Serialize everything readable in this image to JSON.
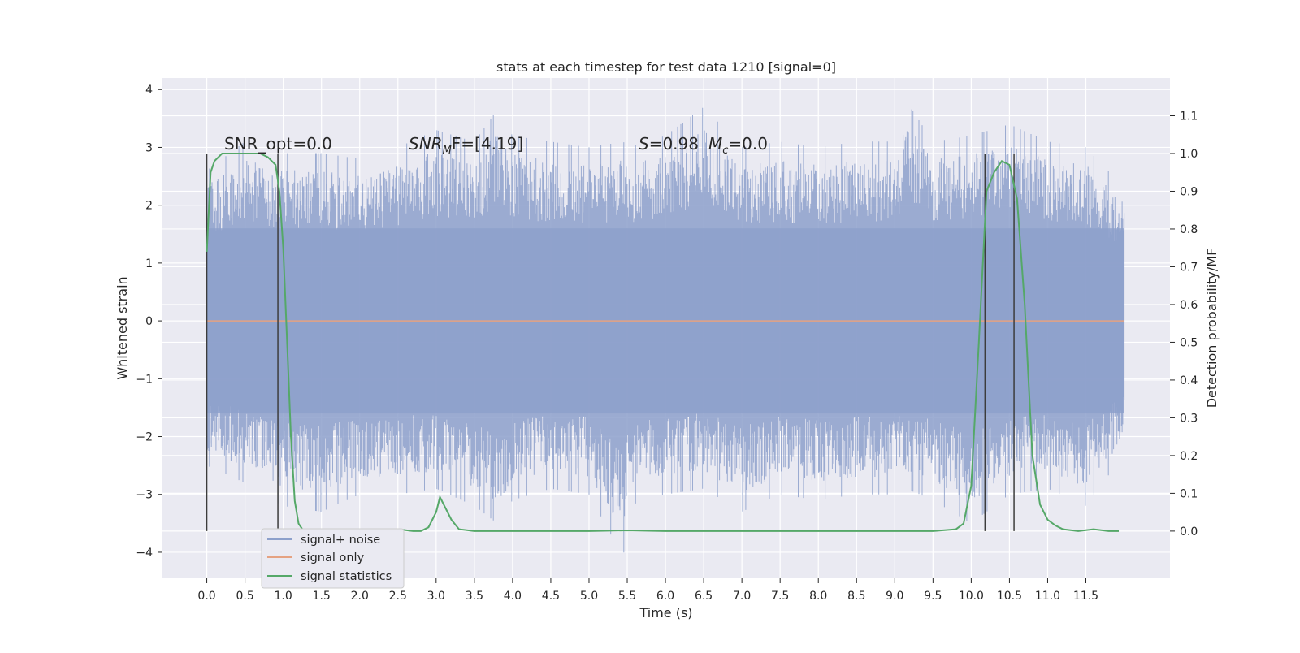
{
  "chart_data": {
    "type": "line",
    "title": "stats at each timestep for test data 1210 [signal=0]",
    "xlabel": "Time (s)",
    "ylabel": "Whitened strain",
    "y2label": "Detection probability/MF",
    "xlim": [
      -0.58,
      12.6
    ],
    "ylim": [
      -4.45,
      4.2
    ],
    "y2lim": [
      -0.125,
      1.2
    ],
    "xticks": [
      0.0,
      0.5,
      1.0,
      1.5,
      2.0,
      2.5,
      3.0,
      3.5,
      4.0,
      4.5,
      5.0,
      5.5,
      6.0,
      6.5,
      7.0,
      7.5,
      8.0,
      8.5,
      9.0,
      9.5,
      10.0,
      10.5,
      11.0,
      11.5
    ],
    "xtick_labels": [
      "0.0",
      "0.5",
      "1.0",
      "1.5",
      "2.0",
      "2.5",
      "3.0",
      "3.5",
      "4.0",
      "4.5",
      "5.0",
      "5.5",
      "6.0",
      "6.5",
      "7.0",
      "7.5",
      "8.0",
      "8.5",
      "9.0",
      "9.5",
      "10.0",
      "10.5",
      "11.0",
      "11.5"
    ],
    "yticks": [
      -4,
      -3,
      -2,
      -1,
      0,
      1,
      2,
      3,
      4
    ],
    "ytick_labels": [
      "−4",
      "−3",
      "−2",
      "−1",
      "0",
      "1",
      "2",
      "3",
      "4"
    ],
    "y2ticks": [
      0.0,
      0.1,
      0.2,
      0.3,
      0.4,
      0.5,
      0.6,
      0.7,
      0.8,
      0.9,
      1.0,
      1.1
    ],
    "y2tick_labels": [
      "0.0",
      "0.1",
      "0.2",
      "0.3",
      "0.4",
      "0.5",
      "0.6",
      "0.7",
      "0.8",
      "0.9",
      "1.0",
      "1.1"
    ],
    "grid": true,
    "legend_position": "lower-left",
    "series": [
      {
        "name": "signal+ noise",
        "color": "#8da0cb",
        "axis": "left",
        "description_range": [
          0.0,
          12.0
        ],
        "envelope": {
          "x": [
            0.0,
            0.5,
            1.0,
            1.5,
            2.0,
            2.5,
            3.0,
            3.5,
            3.8,
            4.0,
            4.5,
            5.0,
            5.45,
            5.5,
            6.0,
            6.5,
            7.0,
            7.5,
            8.0,
            8.5,
            9.0,
            9.15,
            9.5,
            10.0,
            10.5,
            11.0,
            11.5,
            12.0
          ],
          "upper": [
            2.6,
            3.1,
            2.9,
            2.9,
            2.8,
            3.0,
            3.3,
            3.1,
            3.65,
            3.2,
            3.1,
            3.0,
            3.1,
            3.0,
            3.2,
            3.7,
            3.0,
            3.1,
            3.0,
            3.1,
            3.1,
            3.8,
            3.1,
            3.2,
            3.4,
            3.1,
            3.0,
            2.3
          ],
          "lower": [
            -2.5,
            -2.8,
            -3.2,
            -3.3,
            -3.0,
            -3.0,
            -2.9,
            -3.2,
            -3.5,
            -3.1,
            -2.9,
            -3.0,
            -4.1,
            -3.2,
            -3.0,
            -2.9,
            -3.3,
            -3.0,
            -3.1,
            -3.0,
            -3.0,
            -2.9,
            -3.1,
            -3.5,
            -3.0,
            -2.9,
            -3.2,
            -2.3
          ]
        }
      },
      {
        "name": "signal only",
        "color": "#e5a282",
        "axis": "left",
        "x": [
          0.0,
          12.0
        ],
        "y": [
          0.0,
          0.0
        ]
      },
      {
        "name": "signal statistics",
        "color": "#55a868",
        "axis": "right",
        "x": [
          0.0,
          0.05,
          0.1,
          0.2,
          0.3,
          0.5,
          0.7,
          0.8,
          0.9,
          0.95,
          1.0,
          1.05,
          1.1,
          1.15,
          1.2,
          1.25,
          1.3,
          1.5,
          2.0,
          2.3,
          2.5,
          2.7,
          2.8,
          2.9,
          3.0,
          3.05,
          3.1,
          3.2,
          3.3,
          3.5,
          4.0,
          5.0,
          5.5,
          6.0,
          7.0,
          8.0,
          9.0,
          9.5,
          9.8,
          9.9,
          10.0,
          10.1,
          10.2,
          10.3,
          10.4,
          10.5,
          10.6,
          10.7,
          10.75,
          10.8,
          10.9,
          11.0,
          11.1,
          11.2,
          11.4,
          11.6,
          11.8,
          11.93
        ],
        "y": [
          0.74,
          0.95,
          0.98,
          1.0,
          1.0,
          1.0,
          1.0,
          0.99,
          0.97,
          0.9,
          0.75,
          0.5,
          0.25,
          0.08,
          0.02,
          0.005,
          0.0,
          0.0,
          0.0,
          0.0,
          0.005,
          0.0,
          0.0,
          0.01,
          0.05,
          0.09,
          0.07,
          0.03,
          0.005,
          0.0,
          0.0,
          0.0,
          0.002,
          0.0,
          0.0,
          0.0,
          0.0,
          0.0,
          0.005,
          0.02,
          0.12,
          0.5,
          0.9,
          0.95,
          0.98,
          0.97,
          0.88,
          0.6,
          0.4,
          0.2,
          0.07,
          0.03,
          0.015,
          0.005,
          0.0,
          0.005,
          0.0,
          0.0
        ]
      }
    ],
    "vertical_lines": [
      0.0,
      0.93,
      10.18,
      10.56
    ],
    "annotations": [
      {
        "text": "SNR_opt=0.0",
        "x": 0.2
      },
      {
        "text": "SNR_MF=[4.19]",
        "x": 2.6
      },
      {
        "text": "S=0.98 M_c=0.0",
        "x": 5.6
      }
    ]
  },
  "annotation_labels": {
    "snr_opt": "SNR_opt=0.0",
    "snr_mf_base": "SNR",
    "snr_mf_sub": "M",
    "snr_mf_rest": "F=[4.19]",
    "s_part": "S",
    "s_value": "=0.98",
    "mc_base": "M",
    "mc_sub": "c",
    "mc_value": "=0.0"
  }
}
